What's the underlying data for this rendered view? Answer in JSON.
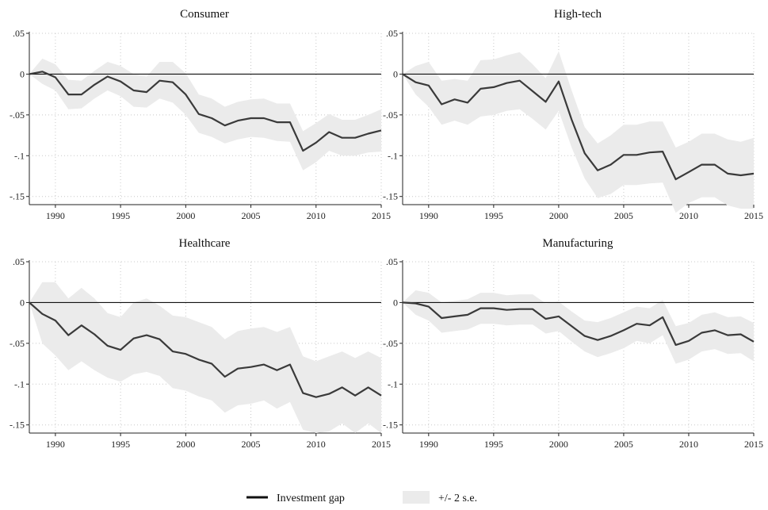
{
  "legend": {
    "line_label": "Investment gap",
    "band_label": "+/- 2 s.e.",
    "line_color": "#3a3a3a",
    "band_color": "#ebebeb"
  },
  "chart_data": [
    {
      "type": "line",
      "title": "Consumer",
      "x_ticks": [
        1990,
        1995,
        2000,
        2005,
        2010,
        2015
      ],
      "y_ticks": [
        ".05",
        "0",
        "-.05",
        "-.1",
        "-.15"
      ],
      "xlim": [
        1988,
        2015
      ],
      "ylim": [
        -0.16,
        0.05
      ],
      "grid": true,
      "x": [
        1988,
        1989,
        1990,
        1991,
        1992,
        1993,
        1994,
        1995,
        1996,
        1997,
        1998,
        1999,
        2000,
        2001,
        2002,
        2003,
        2004,
        2005,
        2006,
        2007,
        2008,
        2009,
        2010,
        2011,
        2012,
        2013,
        2014,
        2015
      ],
      "series": [
        {
          "name": "Investment gap",
          "values": [
            0,
            0.003,
            -0.004,
            -0.025,
            -0.025,
            -0.013,
            -0.003,
            -0.009,
            -0.02,
            -0.022,
            -0.008,
            -0.01,
            -0.025,
            -0.049,
            -0.054,
            -0.063,
            -0.057,
            -0.054,
            -0.054,
            -0.059,
            -0.059,
            -0.094,
            -0.084,
            -0.071,
            -0.078,
            -0.078,
            -0.073,
            -0.069
          ]
        },
        {
          "name": "+/- 2 s.e. upper",
          "values": [
            0,
            0.019,
            0.012,
            -0.007,
            -0.008,
            0.004,
            0.015,
            0.01,
            0,
            -0.003,
            0.015,
            0.015,
            0.001,
            -0.025,
            -0.03,
            -0.04,
            -0.034,
            -0.031,
            -0.03,
            -0.036,
            -0.036,
            -0.07,
            -0.06,
            -0.049,
            -0.056,
            -0.056,
            -0.05,
            -0.043
          ]
        },
        {
          "name": "+/- 2 s.e. lower",
          "values": [
            0,
            -0.012,
            -0.02,
            -0.043,
            -0.042,
            -0.03,
            -0.02,
            -0.027,
            -0.04,
            -0.041,
            -0.03,
            -0.035,
            -0.05,
            -0.072,
            -0.077,
            -0.085,
            -0.08,
            -0.077,
            -0.078,
            -0.082,
            -0.083,
            -0.118,
            -0.108,
            -0.094,
            -0.1,
            -0.1,
            -0.096,
            -0.095
          ]
        }
      ]
    },
    {
      "type": "line",
      "title": "High-tech",
      "x_ticks": [
        1990,
        1995,
        2000,
        2005,
        2010,
        2015
      ],
      "y_ticks": [
        ".05",
        "0",
        "-.05",
        "-.1",
        "-.15"
      ],
      "xlim": [
        1988,
        2015
      ],
      "ylim": [
        -0.16,
        0.05
      ],
      "grid": true,
      "x": [
        1988,
        1989,
        1990,
        1991,
        1992,
        1993,
        1994,
        1995,
        1996,
        1997,
        1998,
        1999,
        2000,
        2001,
        2002,
        2003,
        2004,
        2005,
        2006,
        2007,
        2008,
        2009,
        2010,
        2011,
        2012,
        2013,
        2014,
        2015
      ],
      "series": [
        {
          "name": "Investment gap",
          "values": [
            0,
            -0.01,
            -0.014,
            -0.037,
            -0.031,
            -0.035,
            -0.018,
            -0.016,
            -0.011,
            -0.008,
            -0.021,
            -0.034,
            -0.009,
            -0.056,
            -0.097,
            -0.118,
            -0.111,
            -0.099,
            -0.099,
            -0.096,
            -0.095,
            -0.129,
            -0.12,
            -0.111,
            -0.111,
            -0.122,
            -0.124,
            -0.122
          ]
        },
        {
          "name": "+/- 2 s.e. upper",
          "values": [
            0,
            0.01,
            0.015,
            -0.008,
            -0.006,
            -0.008,
            0.017,
            0.018,
            0.023,
            0.027,
            0.012,
            -0.005,
            0.028,
            -0.02,
            -0.065,
            -0.085,
            -0.075,
            -0.062,
            -0.062,
            -0.058,
            -0.058,
            -0.09,
            -0.083,
            -0.073,
            -0.073,
            -0.08,
            -0.083,
            -0.078
          ]
        },
        {
          "name": "+/- 2 s.e. lower",
          "values": [
            0,
            -0.025,
            -0.04,
            -0.062,
            -0.057,
            -0.062,
            -0.052,
            -0.05,
            -0.045,
            -0.043,
            -0.055,
            -0.068,
            -0.045,
            -0.09,
            -0.128,
            -0.152,
            -0.147,
            -0.136,
            -0.136,
            -0.134,
            -0.133,
            -0.17,
            -0.158,
            -0.151,
            -0.151,
            -0.161,
            -0.165,
            -0.165
          ]
        }
      ]
    },
    {
      "type": "line",
      "title": "Healthcare",
      "x_ticks": [
        1990,
        1995,
        2000,
        2005,
        2010,
        2015
      ],
      "y_ticks": [
        ".05",
        "0",
        "-.05",
        "-.1",
        "-.15"
      ],
      "xlim": [
        1988,
        2015
      ],
      "ylim": [
        -0.16,
        0.05
      ],
      "grid": true,
      "x": [
        1988,
        1989,
        1990,
        1991,
        1992,
        1993,
        1994,
        1995,
        1996,
        1997,
        1998,
        1999,
        2000,
        2001,
        2002,
        2003,
        2004,
        2005,
        2006,
        2007,
        2008,
        2009,
        2010,
        2011,
        2012,
        2013,
        2014,
        2015
      ],
      "series": [
        {
          "name": "Investment gap",
          "values": [
            0,
            -0.014,
            -0.022,
            -0.04,
            -0.028,
            -0.039,
            -0.053,
            -0.058,
            -0.044,
            -0.04,
            -0.045,
            -0.06,
            -0.063,
            -0.07,
            -0.075,
            -0.091,
            -0.081,
            -0.079,
            -0.076,
            -0.083,
            -0.076,
            -0.111,
            -0.116,
            -0.112,
            -0.104,
            -0.114,
            -0.104,
            -0.114
          ]
        },
        {
          "name": "+/- 2 s.e. upper",
          "values": [
            0,
            0.025,
            0.025,
            0.005,
            0.018,
            0.005,
            -0.013,
            -0.018,
            0,
            0.005,
            -0.004,
            -0.016,
            -0.018,
            -0.024,
            -0.03,
            -0.045,
            -0.035,
            -0.032,
            -0.03,
            -0.036,
            -0.03,
            -0.066,
            -0.072,
            -0.066,
            -0.06,
            -0.068,
            -0.06,
            -0.068
          ]
        },
        {
          "name": "+/- 2 s.e. lower",
          "values": [
            0,
            -0.05,
            -0.065,
            -0.083,
            -0.072,
            -0.083,
            -0.092,
            -0.097,
            -0.088,
            -0.085,
            -0.09,
            -0.105,
            -0.108,
            -0.115,
            -0.12,
            -0.135,
            -0.126,
            -0.124,
            -0.12,
            -0.13,
            -0.122,
            -0.156,
            -0.16,
            -0.158,
            -0.148,
            -0.16,
            -0.148,
            -0.16
          ]
        }
      ]
    },
    {
      "type": "line",
      "title": "Manufacturing",
      "x_ticks": [
        1990,
        1995,
        2000,
        2005,
        2010,
        2015
      ],
      "y_ticks": [
        ".05",
        "0",
        "-.05",
        "-.1",
        "-.15"
      ],
      "xlim": [
        1988,
        2015
      ],
      "ylim": [
        -0.16,
        0.05
      ],
      "grid": true,
      "x": [
        1988,
        1989,
        1990,
        1991,
        1992,
        1993,
        1994,
        1995,
        1996,
        1997,
        1998,
        1999,
        2000,
        2001,
        2002,
        2003,
        2004,
        2005,
        2006,
        2007,
        2008,
        2009,
        2010,
        2011,
        2012,
        2013,
        2014,
        2015
      ],
      "series": [
        {
          "name": "Investment gap",
          "values": [
            0,
            -0.001,
            -0.005,
            -0.019,
            -0.017,
            -0.015,
            -0.007,
            -0.007,
            -0.009,
            -0.008,
            -0.008,
            -0.02,
            -0.017,
            -0.029,
            -0.041,
            -0.046,
            -0.041,
            -0.034,
            -0.026,
            -0.028,
            -0.018,
            -0.052,
            -0.047,
            -0.037,
            -0.034,
            -0.04,
            -0.039,
            -0.048
          ]
        },
        {
          "name": "+/- 2 s.e. upper",
          "values": [
            0,
            0.015,
            0.012,
            0,
            0.002,
            0.004,
            0.012,
            0.012,
            0.009,
            0.01,
            0.01,
            -0.001,
            0.001,
            -0.011,
            -0.022,
            -0.024,
            -0.019,
            -0.012,
            -0.005,
            -0.007,
            0.003,
            -0.029,
            -0.025,
            -0.015,
            -0.012,
            -0.018,
            -0.017,
            -0.025
          ]
        },
        {
          "name": "+/- 2 s.e. lower",
          "values": [
            0,
            -0.015,
            -0.022,
            -0.037,
            -0.035,
            -0.033,
            -0.026,
            -0.026,
            -0.028,
            -0.027,
            -0.027,
            -0.038,
            -0.035,
            -0.048,
            -0.06,
            -0.067,
            -0.062,
            -0.056,
            -0.047,
            -0.05,
            -0.04,
            -0.075,
            -0.07,
            -0.06,
            -0.057,
            -0.063,
            -0.062,
            -0.072
          ]
        }
      ]
    }
  ]
}
